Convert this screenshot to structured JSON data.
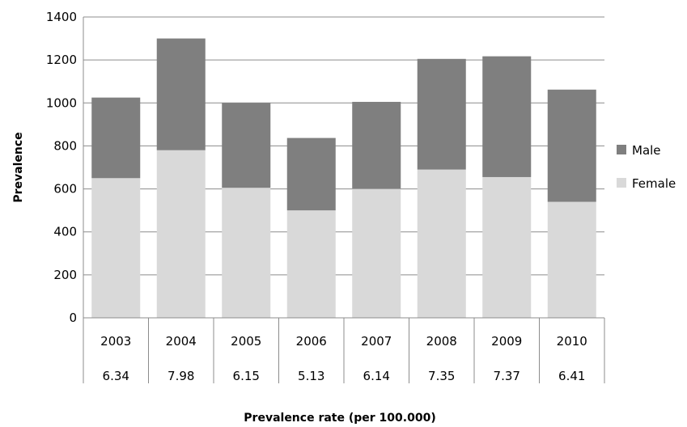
{
  "chart_data": {
    "type": "bar",
    "stacked": true,
    "categories": [
      "2003",
      "2004",
      "2005",
      "2006",
      "2007",
      "2008",
      "2009",
      "2010"
    ],
    "category_sublabels": [
      "6.34",
      "7.98",
      "6.15",
      "5.13",
      "6.14",
      "7.35",
      "7.37",
      "6.41"
    ],
    "series": [
      {
        "name": "Female",
        "values": [
          650,
          780,
          605,
          500,
          600,
          690,
          655,
          540
        ],
        "color": "#d9d9d9"
      },
      {
        "name": "Male",
        "values": [
          375,
          520,
          395,
          337,
          405,
          515,
          562,
          522
        ],
        "color": "#7f7f7f"
      }
    ],
    "xlabel": "Prevalence rate (per 100.000)",
    "ylabel": "Prevalence",
    "ylim": [
      0,
      1400
    ],
    "yticks": [
      0,
      200,
      400,
      600,
      800,
      1000,
      1200,
      1400
    ],
    "grid": true,
    "legend_position": "right",
    "legend_order": [
      "Male",
      "Female"
    ],
    "colors": {
      "grid": "#8c8c8c",
      "axis": "#8c8c8c",
      "text": "#000000"
    }
  }
}
